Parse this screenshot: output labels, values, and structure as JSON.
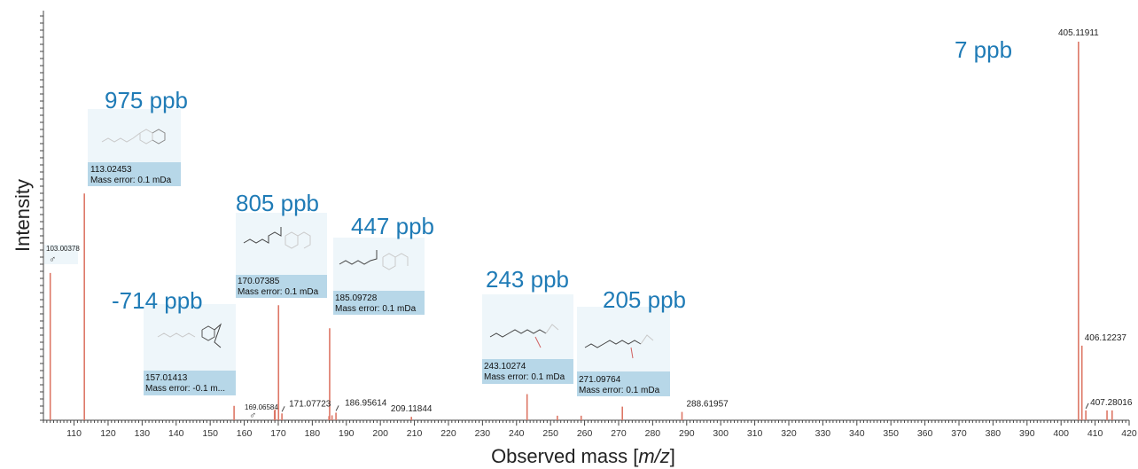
{
  "chart_data": {
    "type": "bar",
    "xlabel": "Observed mass [m/z]",
    "ylabel": "Intensity",
    "xlim": [
      101,
      420
    ],
    "x_ticks": [
      110,
      120,
      130,
      140,
      150,
      160,
      170,
      180,
      190,
      200,
      210,
      220,
      230,
      240,
      250,
      260,
      270,
      280,
      290,
      300,
      310,
      320,
      330,
      340,
      350,
      360,
      370,
      380,
      390,
      400,
      410,
      420
    ],
    "peaks": [
      {
        "mz": 103.00378,
        "intensity": 0.389,
        "label": "103.00378"
      },
      {
        "mz": 113.02453,
        "intensity": 0.599
      },
      {
        "mz": 157.01413,
        "intensity": 0.038
      },
      {
        "mz": 168.9,
        "intensity": 0.026
      },
      {
        "mz": 169.06584,
        "intensity": 0.029
      },
      {
        "mz": 170.07385,
        "intensity": 0.304
      },
      {
        "mz": 171.07723,
        "intensity": 0.018,
        "label": "171.07723"
      },
      {
        "mz": 184.9,
        "intensity": 0.011
      },
      {
        "mz": 185.09728,
        "intensity": 0.243
      },
      {
        "mz": 185.8,
        "intensity": 0.013
      },
      {
        "mz": 186.95614,
        "intensity": 0.02,
        "label": "186.95614"
      },
      {
        "mz": 209.11844,
        "intensity": 0.009,
        "label": "209.11844"
      },
      {
        "mz": 243.10274,
        "intensity": 0.069
      },
      {
        "mz": 252.0,
        "intensity": 0.012
      },
      {
        "mz": 259.0,
        "intensity": 0.012
      },
      {
        "mz": 271.09764,
        "intensity": 0.036
      },
      {
        "mz": 288.61957,
        "intensity": 0.022,
        "label": "288.61957"
      },
      {
        "mz": 405.11911,
        "intensity": 1.0,
        "label": "405.11911"
      },
      {
        "mz": 406.12237,
        "intensity": 0.197,
        "label": "406.12237"
      },
      {
        "mz": 407.28016,
        "intensity": 0.026,
        "label": "407.28016"
      },
      {
        "mz": 413.5,
        "intensity": 0.026
      },
      {
        "mz": 415.0,
        "intensity": 0.026
      }
    ],
    "annotations": [
      {
        "ppb": "7 ppb"
      },
      {
        "ppb": "975 ppb",
        "mass": "113.02453",
        "error": "Mass error: 0.1 mDa"
      },
      {
        "ppb": "805 ppb",
        "mass": "170.07385",
        "error": "Mass error: 0.1 mDa"
      },
      {
        "ppb": "447 ppb",
        "mass": "185.09728",
        "error": "Mass error: 0.1 mDa"
      },
      {
        "ppb": "-714 ppb",
        "mass": "157.01413",
        "error": "Mass error: -0.1 m..."
      },
      {
        "ppb": "243 ppb",
        "mass": "243.10274",
        "error": "Mass error: 0.1 mDa"
      },
      {
        "ppb": "205 ppb",
        "mass": "271.09764",
        "error": "Mass error: 0.1 mDa"
      }
    ],
    "isotope_marks": [
      {
        "label": "103.00378"
      },
      {
        "label": "169.06584"
      }
    ]
  },
  "colors": {
    "peak": "#dd7766",
    "ppb_text": "#1f7bb6",
    "box_bg": "#eef6fa",
    "box_label_bg": "#b7d7e8",
    "axis": "#444444"
  }
}
